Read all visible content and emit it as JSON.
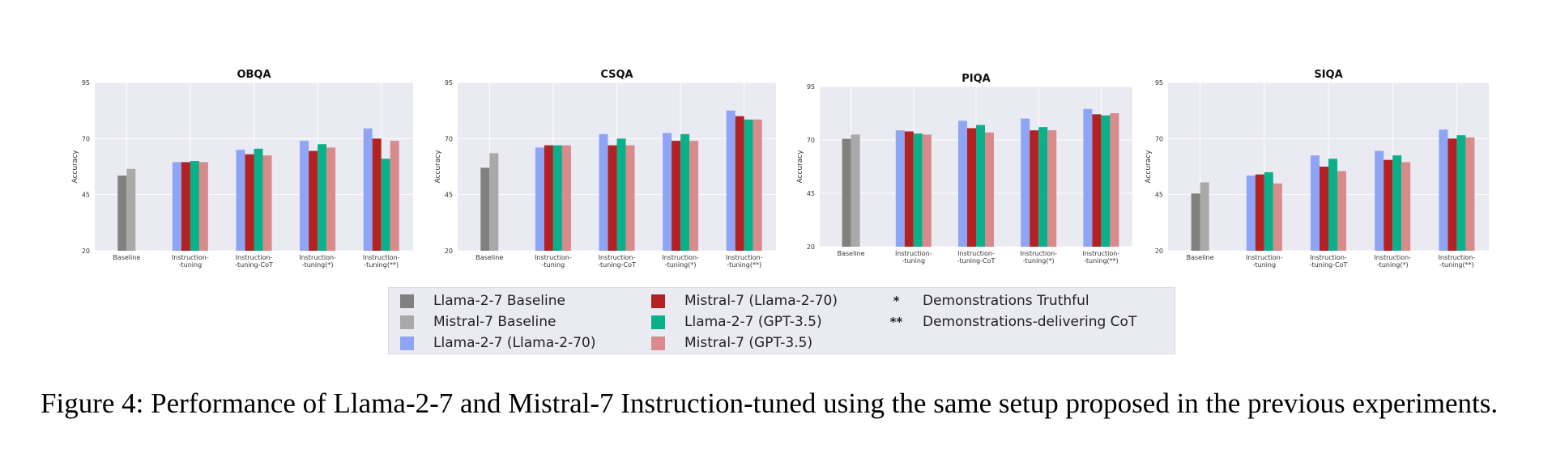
{
  "chart_data": [
    {
      "type": "bar",
      "title": "OBQA",
      "ylabel": "Accuracy",
      "ylim": [
        20,
        95
      ],
      "yticks": [
        "20",
        "45",
        "70",
        "95"
      ],
      "categories": [
        "Baseline",
        "Instruction--tuning",
        "Instruction--tuning-CoT",
        "Instruction--tuning(*)",
        "Instruction--tuning(**)"
      ],
      "category_labels": [
        [
          "Baseline"
        ],
        [
          "Instruction-",
          "-tuning"
        ],
        [
          "Instruction-",
          "-tuning-CoT"
        ],
        [
          "Instruction-",
          "-tuning(*)"
        ],
        [
          "Instruction-",
          "-tuning(**)"
        ]
      ],
      "series": [
        {
          "name": "Llama-2-7 Baseline",
          "values": [
            53.5,
            null,
            null,
            null,
            null
          ]
        },
        {
          "name": "Mistral-7 Baseline",
          "values": [
            56.5,
            null,
            null,
            null,
            null
          ]
        },
        {
          "name": "Llama-2-7 (Llama-2-70)",
          "values": [
            null,
            59.5,
            65,
            69,
            74.5
          ]
        },
        {
          "name": "Mistral-7 (Llama-2-70)",
          "values": [
            null,
            59.5,
            63,
            64.5,
            70
          ]
        },
        {
          "name": "Llama-2-7 (GPT-3.5)",
          "values": [
            null,
            60,
            65.5,
            67.5,
            61
          ]
        },
        {
          "name": "Mistral-7 (GPT-3.5)",
          "values": [
            null,
            59.5,
            62.5,
            66,
            69
          ]
        }
      ]
    },
    {
      "type": "bar",
      "title": "CSQA",
      "ylabel": "Accuracy",
      "ylim": [
        20,
        95
      ],
      "yticks": [
        "20",
        "45",
        "70",
        "95"
      ],
      "categories": [
        "Baseline",
        "Instruction--tuning",
        "Instruction--tuning-CoT",
        "Instruction--tuning(*)",
        "Instruction--tuning(**)"
      ],
      "category_labels": [
        [
          "Baseline"
        ],
        [
          "Instruction-",
          "-tuning"
        ],
        [
          "Instruction-",
          "-tuning-CoT"
        ],
        [
          "Instruction-",
          "-tuning(*)"
        ],
        [
          "Instruction-",
          "-tuning(**)"
        ]
      ],
      "series": [
        {
          "name": "Llama-2-7 Baseline",
          "values": [
            57,
            null,
            null,
            null,
            null
          ]
        },
        {
          "name": "Mistral-7 Baseline",
          "values": [
            63.5,
            null,
            null,
            null,
            null
          ]
        },
        {
          "name": "Llama-2-7 (Llama-2-70)",
          "values": [
            null,
            66,
            72,
            72.5,
            82.5
          ]
        },
        {
          "name": "Mistral-7 (Llama-2-70)",
          "values": [
            null,
            67,
            67,
            69,
            80
          ]
        },
        {
          "name": "Llama-2-7 (GPT-3.5)",
          "values": [
            null,
            67,
            70,
            72,
            78.5
          ]
        },
        {
          "name": "Mistral-7 (GPT-3.5)",
          "values": [
            null,
            67,
            67,
            69,
            78.5
          ]
        }
      ]
    },
    {
      "type": "bar",
      "title": "PIQA",
      "ylabel": "Accuracy",
      "ylim": [
        20,
        95
      ],
      "yticks": [
        "20",
        "45",
        "70",
        "95"
      ],
      "categories": [
        "Baseline",
        "Instruction--tuning",
        "Instruction--tuning-CoT",
        "Instruction--tuning(*)",
        "Instruction--tuning(**)"
      ],
      "category_labels": [
        [
          "Baseline"
        ],
        [
          "Instruction-",
          "-tuning"
        ],
        [
          "Instruction-",
          "-tuning-CoT"
        ],
        [
          "Instruction-",
          "-tuning(*)"
        ],
        [
          "Instruction-",
          "-tuning(**)"
        ]
      ],
      "series": [
        {
          "name": "Llama-2-7 Baseline",
          "values": [
            70.5,
            null,
            null,
            null,
            null
          ]
        },
        {
          "name": "Mistral-7 Baseline",
          "values": [
            72.5,
            null,
            null,
            null,
            null
          ]
        },
        {
          "name": "Llama-2-7 (Llama-2-70)",
          "values": [
            null,
            74.5,
            79,
            80,
            84.5
          ]
        },
        {
          "name": "Mistral-7 (Llama-2-70)",
          "values": [
            null,
            74,
            75.5,
            74.5,
            82
          ]
        },
        {
          "name": "Llama-2-7 (GPT-3.5)",
          "values": [
            null,
            73,
            77,
            76,
            81.5
          ]
        },
        {
          "name": "Mistral-7 (GPT-3.5)",
          "values": [
            null,
            72.5,
            73.5,
            74.5,
            82.5
          ]
        }
      ]
    },
    {
      "type": "bar",
      "title": "SIQA",
      "ylabel": "Accuracy",
      "ylim": [
        20,
        95
      ],
      "yticks": [
        "20",
        "45",
        "70",
        "95"
      ],
      "categories": [
        "Baseline",
        "Instruction--tuning",
        "Instruction--tuning-CoT",
        "Instruction--tuning(*)",
        "Instruction--tuning(**)"
      ],
      "category_labels": [
        [
          "Baseline"
        ],
        [
          "Instruction-",
          "-tuning"
        ],
        [
          "Instruction-",
          "-tuning-CoT"
        ],
        [
          "Instruction-",
          "-tuning(*)"
        ],
        [
          "Instruction-",
          "-tuning(**)"
        ]
      ],
      "series": [
        {
          "name": "Llama-2-7 Baseline",
          "values": [
            45.5,
            null,
            null,
            null,
            null
          ]
        },
        {
          "name": "Mistral-7 Baseline",
          "values": [
            50.5,
            null,
            null,
            null,
            null
          ]
        },
        {
          "name": "Llama-2-7 (Llama-2-70)",
          "values": [
            null,
            53.5,
            62.5,
            64.5,
            74
          ]
        },
        {
          "name": "Mistral-7 (Llama-2-70)",
          "values": [
            null,
            54,
            57.5,
            60.5,
            70
          ]
        },
        {
          "name": "Llama-2-7 (GPT-3.5)",
          "values": [
            null,
            55,
            61,
            62.5,
            71.5
          ]
        },
        {
          "name": "Mistral-7 (GPT-3.5)",
          "values": [
            null,
            50,
            55.5,
            59.5,
            70.5
          ]
        }
      ]
    }
  ],
  "colors": {
    "Llama-2-7 Baseline": "#808080",
    "Mistral-7 Baseline": "#a9a9a9",
    "Llama-2-7 (Llama-2-70)": "#8ea5f5",
    "Mistral-7 (Llama-2-70)": "#b22222",
    "Llama-2-7 (GPT-3.5)": "#09b08a",
    "Mistral-7 (GPT-3.5)": "#d98a8a",
    "plot_background": "#eaeaf2",
    "grid": "#ffffff"
  },
  "legend": {
    "items": [
      {
        "kind": "swatch",
        "label": "Llama-2-7 Baseline",
        "color": "#808080"
      },
      {
        "kind": "swatch",
        "label": "Mistral-7 Baseline",
        "color": "#a9a9a9"
      },
      {
        "kind": "swatch",
        "label": "Llama-2-7 (Llama-2-70)",
        "color": "#8ea5f5"
      },
      {
        "kind": "swatch",
        "label": "Mistral-7 (Llama-2-70)",
        "color": "#b22222"
      },
      {
        "kind": "swatch",
        "label": "Llama-2-7 (GPT-3.5)",
        "color": "#09b08a"
      },
      {
        "kind": "swatch",
        "label": "Mistral-7 (GPT-3.5)",
        "color": "#d98a8a"
      },
      {
        "kind": "marker",
        "marker": "*",
        "label": "Demonstrations Truthful"
      },
      {
        "kind": "marker",
        "marker": "**",
        "label": "Demonstrations-delivering CoT"
      }
    ]
  },
  "caption": "Figure 4: Performance of Llama-2-7 and Mistral-7 Instruction-tuned using the same setup proposed in the previous experiments."
}
